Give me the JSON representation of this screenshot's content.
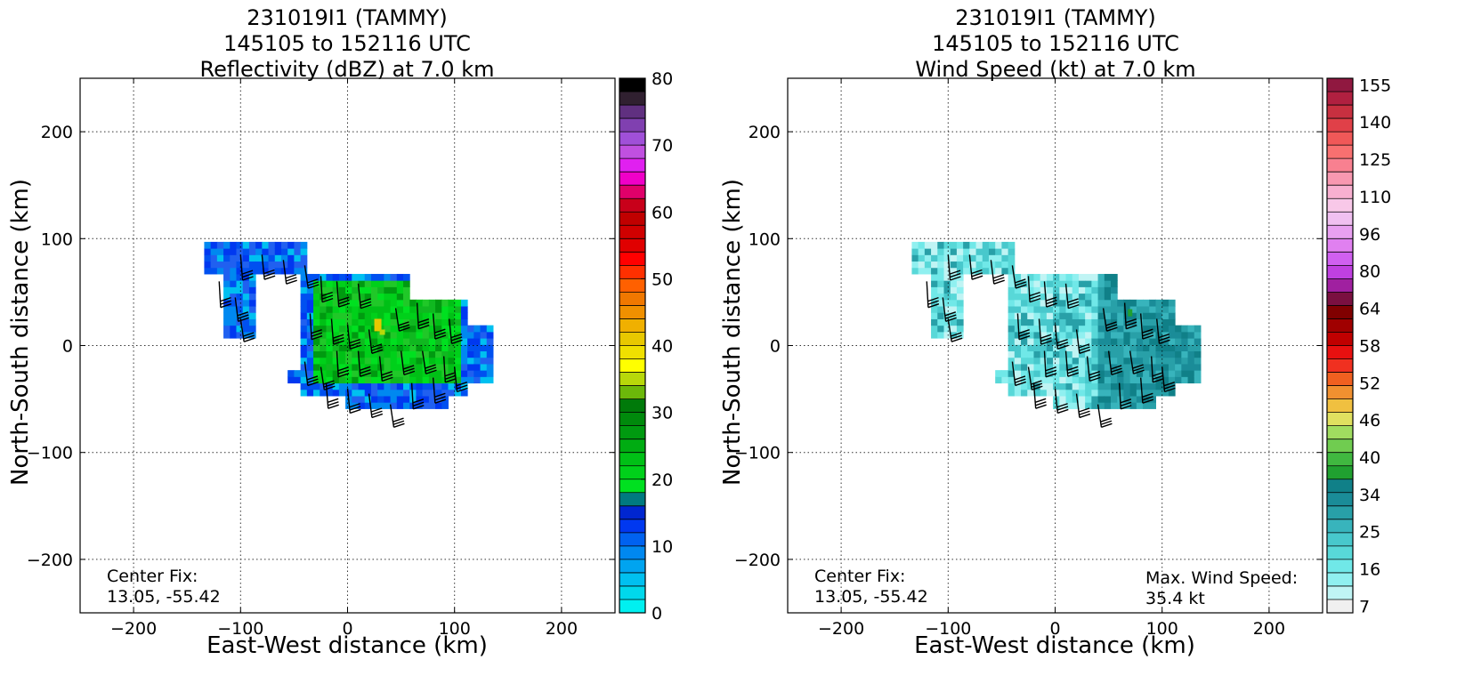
{
  "figure": {
    "panels": [
      {
        "id": "reflectivity",
        "title_lines": [
          "231019I1 (TAMMY)",
          "145105 to 152116 UTC",
          "Reflectivity (dBZ) at 7.0 km"
        ],
        "xlabel": "East-West distance (km)",
        "ylabel": "North-South distance (km)",
        "center_fix_label": "Center Fix:",
        "center_fix_value": "13.05, -55.42",
        "max_wind_label": "",
        "max_wind_value": ""
      },
      {
        "id": "wind-speed",
        "title_lines": [
          "231019I1 (TAMMY)",
          "145105 to 152116 UTC",
          "Wind Speed (kt) at 7.0 km"
        ],
        "xlabel": "East-West distance (km)",
        "ylabel": "North-South distance (km)",
        "center_fix_label": "Center Fix:",
        "center_fix_value": "13.05, -55.42",
        "max_wind_label": "Max. Wind Speed:",
        "max_wind_value": "35.4 kt"
      }
    ]
  },
  "chart_data": [
    {
      "type": "heatmap",
      "title": "231019I1 (TAMMY) 145105 to 152116 UTC Reflectivity (dBZ) at 7.0 km",
      "xlabel": "East-West distance (km)",
      "ylabel": "North-South distance (km)",
      "xlim": [
        -250,
        250
      ],
      "ylim": [
        -250,
        250
      ],
      "xticks": [
        -200,
        -100,
        0,
        100,
        200
      ],
      "yticks": [
        -200,
        -100,
        0,
        100,
        200
      ],
      "grid": true,
      "colorbar": {
        "label_ticks": [
          0,
          10,
          20,
          30,
          40,
          50,
          60,
          70,
          80
        ],
        "min": 0,
        "max": 80,
        "colors": [
          "#00f0f0",
          "#00d8ec",
          "#00c0f0",
          "#00a4f0",
          "#0088f0",
          "#0062f0",
          "#0038f0",
          "#0026d0",
          "#007a80",
          "#00e020",
          "#00d01a",
          "#00c016",
          "#00ac12",
          "#009a10",
          "#008a0c",
          "#007a0a",
          "#6cb80a",
          "#b8d80a",
          "#ffff00",
          "#f0e000",
          "#e8c800",
          "#f0b000",
          "#f09000",
          "#f07800",
          "#ff6000",
          "#ff3000",
          "#ff0000",
          "#e00000",
          "#d00000",
          "#c00000",
          "#c8001a",
          "#e0006a",
          "#f000c8",
          "#e020f0",
          "#c050e0",
          "#a050d8",
          "#8040b0",
          "#603080",
          "#302030",
          "#000000"
        ]
      },
      "center_fix": "13.05, -55.42",
      "wind_barbs": "overlay"
    },
    {
      "type": "heatmap",
      "title": "231019I1 (TAMMY) 145105 to 152116 UTC Wind Speed (kt) at 7.0 km",
      "xlabel": "East-West distance (km)",
      "ylabel": "North-South distance (km)",
      "xlim": [
        -250,
        250
      ],
      "ylim": [
        -250,
        250
      ],
      "xticks": [
        -200,
        -100,
        0,
        100,
        200
      ],
      "yticks": [
        -200,
        -100,
        0,
        100,
        200
      ],
      "grid": true,
      "colorbar": {
        "label_ticks": [
          7,
          16,
          25,
          34,
          40,
          46,
          52,
          58,
          64,
          80,
          96,
          110,
          125,
          140,
          155
        ],
        "colors": [
          "#f0f0f0",
          "#c0f4f4",
          "#90f0f0",
          "#70e8e8",
          "#58d8d8",
          "#48c8cc",
          "#38b4bc",
          "#28a0a8",
          "#1a8c98",
          "#108088",
          "#20a030",
          "#40b840",
          "#70cc50",
          "#a0dc60",
          "#e0e060",
          "#f0c040",
          "#f09030",
          "#f06020",
          "#f03020",
          "#e81010",
          "#c00000",
          "#a00000",
          "#800000",
          "#7a1040",
          "#a020a0",
          "#c040e0",
          "#d060f0",
          "#e080f0",
          "#e8a0f0",
          "#f0c0f0",
          "#f8c8e8",
          "#f8b0d0",
          "#f898b0",
          "#f88090",
          "#f87070",
          "#f05858",
          "#e04048",
          "#c83040",
          "#b02040",
          "#901840"
        ]
      },
      "center_fix": "13.05, -55.42",
      "max_wind_speed": "35.4 kt",
      "wind_barbs": "overlay"
    }
  ]
}
